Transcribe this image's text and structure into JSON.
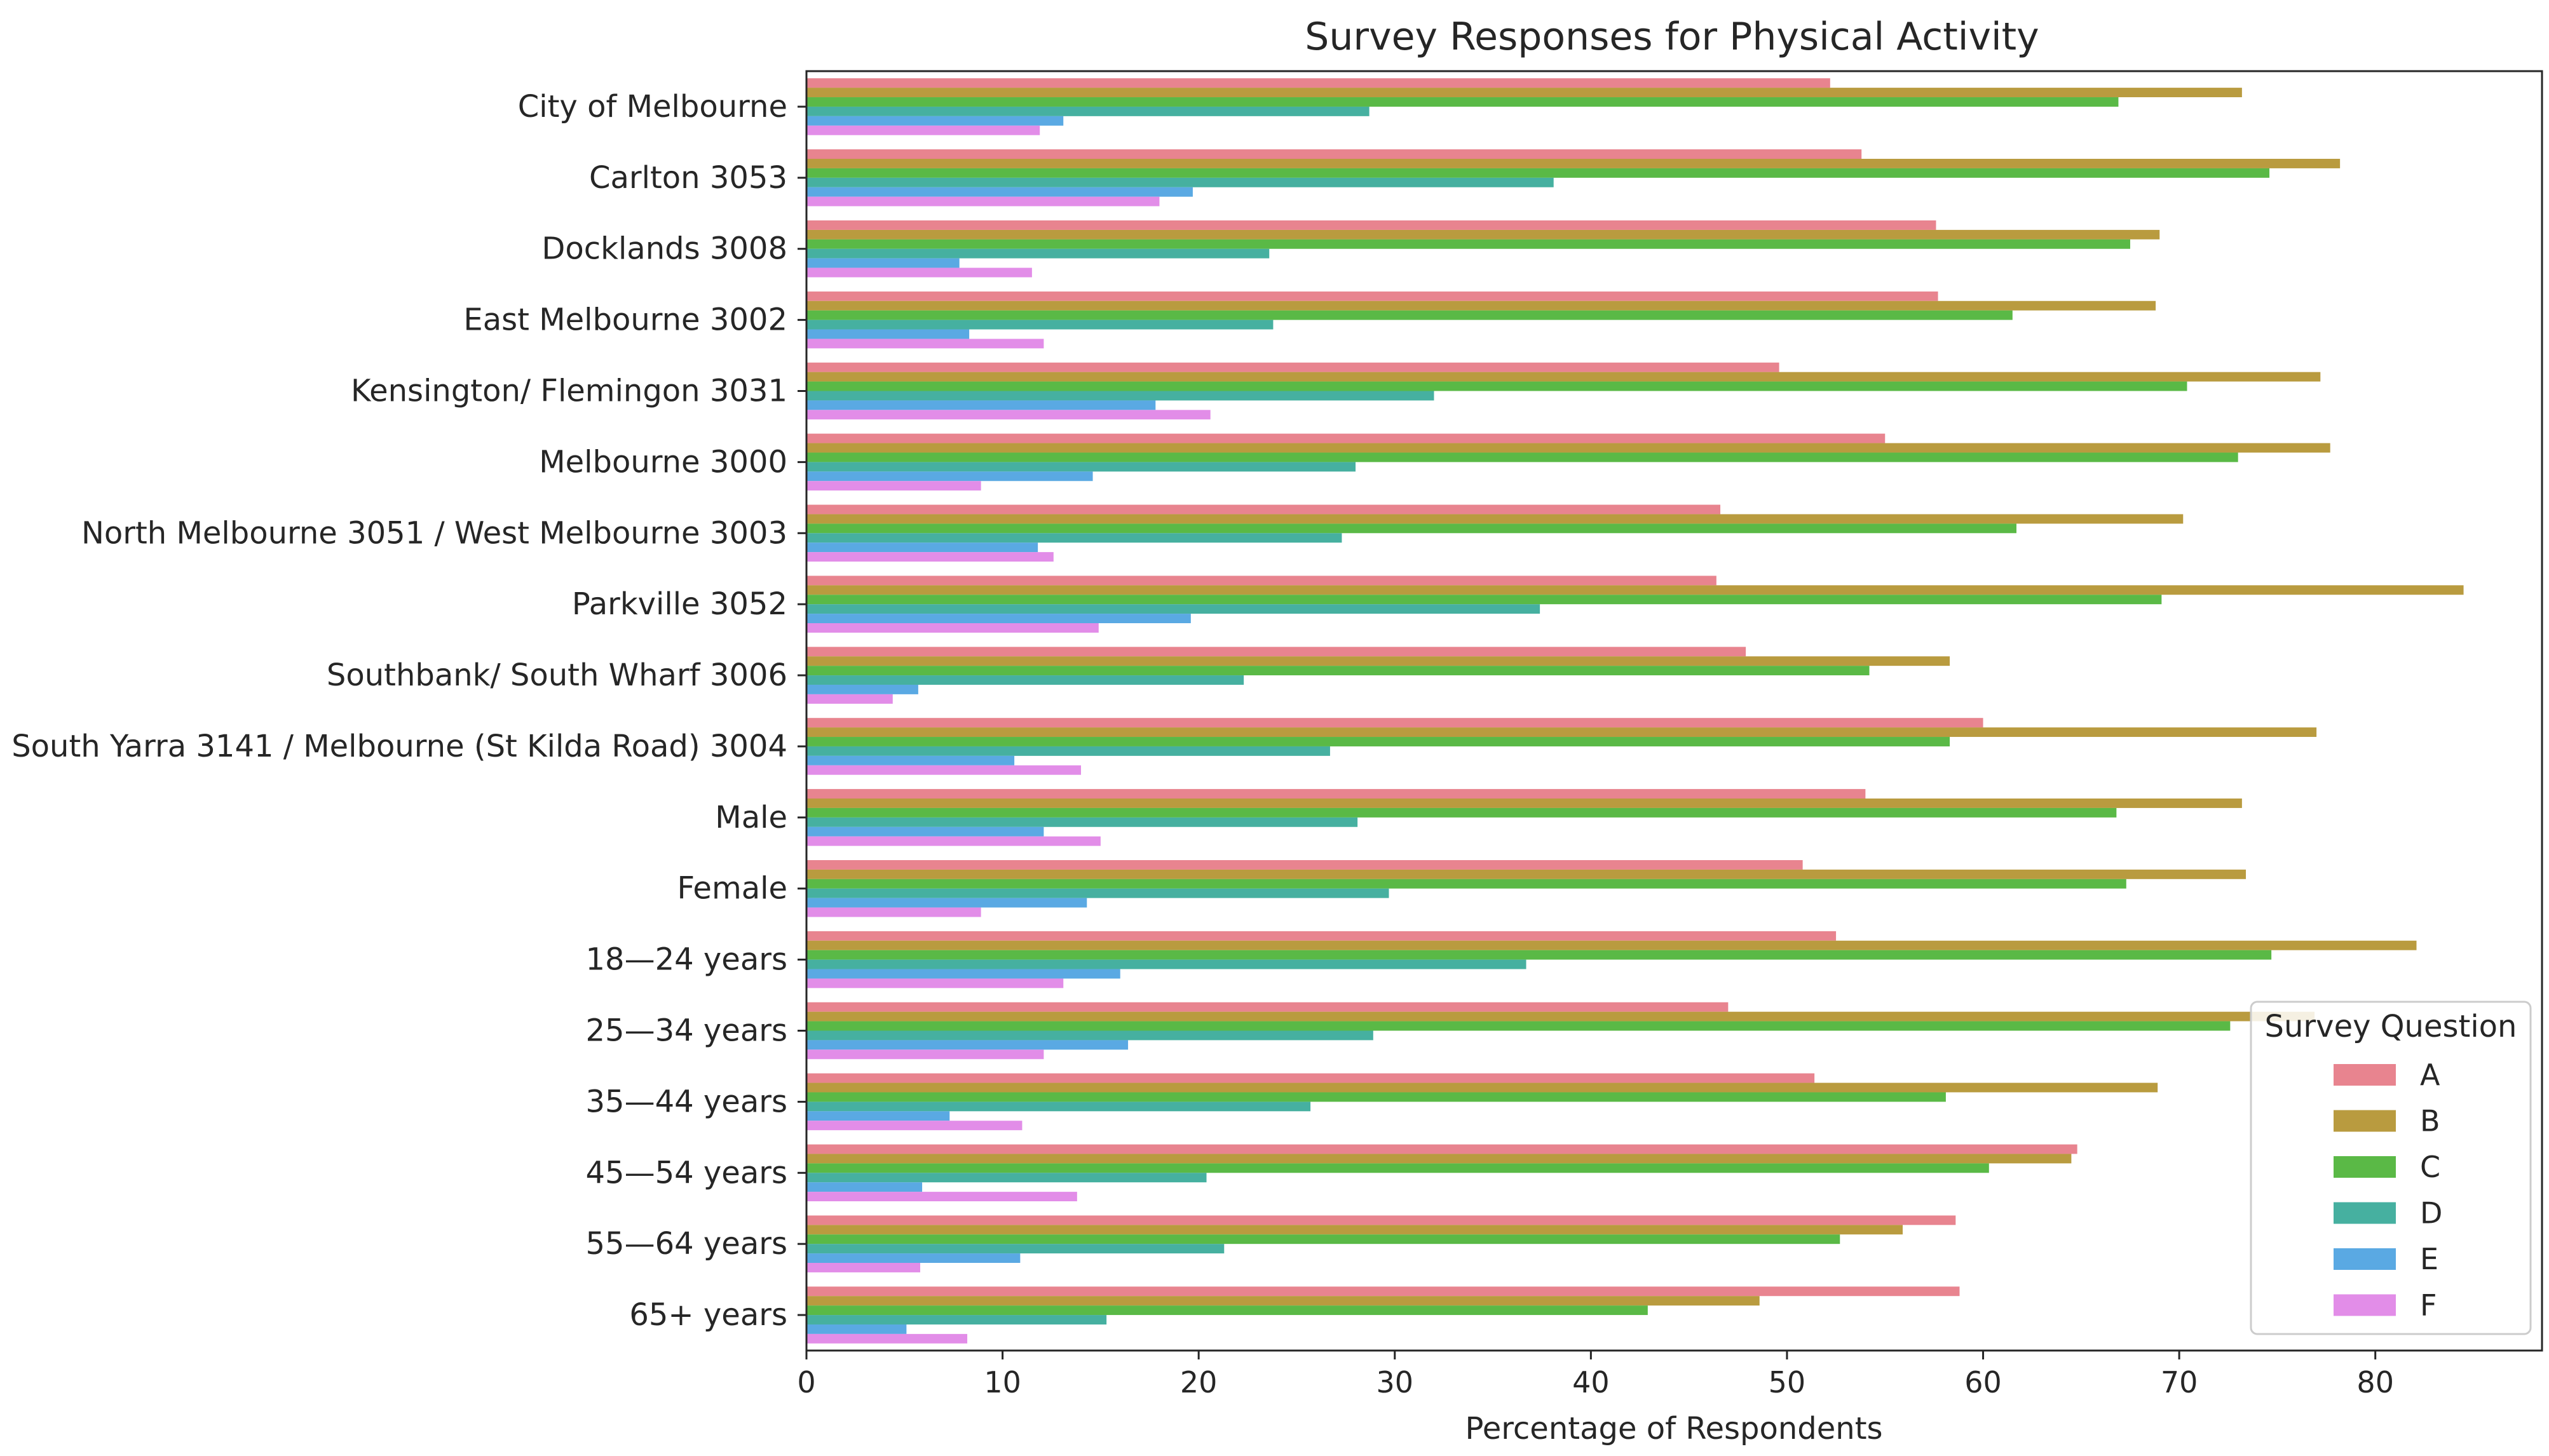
{
  "chart_data": {
    "type": "bar",
    "orientation": "horizontal",
    "title": "Survey Responses for Physical Activity",
    "xlabel": "Percentage of Respondents",
    "ylabel": "",
    "xlim": [
      0,
      88.5
    ],
    "xticks": [
      0,
      10,
      20,
      30,
      40,
      50,
      60,
      70,
      80
    ],
    "grid": false,
    "legend": {
      "title": "Survey Question",
      "placement": "lower-right"
    },
    "categories": [
      "City of Melbourne",
      "Carlton 3053",
      "Docklands 3008",
      "East Melbourne 3002",
      "Kensington/ Flemingon 3031",
      "Melbourne 3000",
      "North Melbourne 3051 / West Melbourne 3003",
      "Parkville 3052",
      "Southbank/ South Wharf 3006",
      "South Yarra 3141 / Melbourne (St Kilda Road) 3004",
      "Male",
      "Female",
      "18—24 years",
      "25—34 years",
      "35—44 years",
      "45—54 years",
      "55—64 years",
      "65+ years"
    ],
    "series": [
      {
        "name": "A",
        "color": "#e8848f",
        "values": [
          52.2,
          53.8,
          57.6,
          57.7,
          49.6,
          55.0,
          46.6,
          46.4,
          47.9,
          60.0,
          54.0,
          50.8,
          52.5,
          47.0,
          51.4,
          64.8,
          58.6,
          58.8
        ]
      },
      {
        "name": "B",
        "color": "#b99b3f",
        "values": [
          73.2,
          78.2,
          69.0,
          68.8,
          77.2,
          77.7,
          70.2,
          84.5,
          58.3,
          77.0,
          73.2,
          73.4,
          82.1,
          76.9,
          68.9,
          64.5,
          55.9,
          48.6
        ]
      },
      {
        "name": "C",
        "color": "#5ab946",
        "values": [
          66.9,
          74.6,
          67.5,
          61.5,
          70.4,
          73.0,
          61.7,
          69.1,
          54.2,
          58.3,
          66.8,
          67.3,
          74.7,
          72.6,
          58.1,
          60.3,
          52.7,
          42.9
        ]
      },
      {
        "name": "D",
        "color": "#46b0a0",
        "values": [
          28.7,
          38.1,
          23.6,
          23.8,
          32.0,
          28.0,
          27.3,
          37.4,
          22.3,
          26.7,
          28.1,
          29.7,
          36.7,
          28.9,
          25.7,
          20.4,
          21.3,
          15.3
        ]
      },
      {
        "name": "E",
        "color": "#5aa9e3",
        "values": [
          13.1,
          19.7,
          7.8,
          8.3,
          17.8,
          14.6,
          11.8,
          19.6,
          5.7,
          10.6,
          12.1,
          14.3,
          16.0,
          16.4,
          7.3,
          5.9,
          10.9,
          5.1
        ]
      },
      {
        "name": "F",
        "color": "#e28de8",
        "values": [
          11.9,
          18.0,
          11.5,
          12.1,
          20.6,
          8.9,
          12.6,
          14.9,
          4.4,
          14.0,
          15.0,
          8.9,
          13.1,
          12.1,
          11.0,
          13.8,
          5.8,
          8.2
        ]
      }
    ]
  }
}
